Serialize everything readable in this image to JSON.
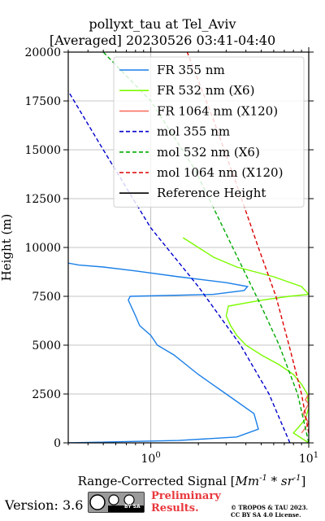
{
  "header": {
    "title_line1": "pollyxt_tau at Tel_Aviv",
    "title_line2": "[Averaged] 20230526 03:41-04:40"
  },
  "footer": {
    "version": "Version: 3.6",
    "cc_label": "BY SA",
    "preliminary_line1": "Preliminary",
    "preliminary_line2": "Results.",
    "copyright_line1": "© TROPOS & TAU 2023.",
    "copyright_line2": "CC BY SA 4.0 License."
  },
  "chart_data": {
    "type": "line",
    "title": "pollyxt_tau at Tel_Aviv [Averaged] 20230526 03:41-04:40",
    "xlabel": "Range-Corrected Signal [Mm^-1 * sr^-1]",
    "ylabel": "Height (m)",
    "xscale": "log",
    "xlim": [
      0.3,
      10
    ],
    "ylim": [
      0,
      20000
    ],
    "x_ticks": [
      {
        "value": 1,
        "label": "10^0"
      },
      {
        "value": 10,
        "label": "10^1"
      }
    ],
    "y_ticks": [
      0,
      2500,
      5000,
      7500,
      10000,
      12500,
      15000,
      17500,
      20000
    ],
    "grid": true,
    "legend_position": "top-right",
    "colors": {
      "fr355": "#1a7fe8",
      "fr532": "#7cfc00",
      "fr1064": "#f87060",
      "mol355": "#0000cc",
      "mol532": "#00aa00",
      "mol1064": "#dd0000"
    },
    "series": [
      {
        "name": "FR 355 nm",
        "key": "fr355",
        "style": "solid",
        "x": [
          0.3,
          1.5,
          3.5,
          4.8,
          4.5,
          3.0,
          2.0,
          1.4,
          1.1,
          1.0,
          0.85,
          0.8,
          0.75,
          0.72,
          0.74,
          2.5,
          3.9,
          4.1,
          3.0,
          1.5,
          0.8,
          0.5,
          0.35,
          0.3
        ],
        "y": [
          0,
          120,
          300,
          700,
          1500,
          2500,
          3500,
          4500,
          5000,
          5500,
          6000,
          6500,
          7000,
          7300,
          7500,
          7600,
          7800,
          8000,
          8200,
          8500,
          8800,
          9000,
          9100,
          9200
        ]
      },
      {
        "name": "FR 532 nm (X6)",
        "key": "fr532",
        "style": "solid",
        "x": [
          10,
          8.0,
          9.5,
          10,
          9.8,
          9.0,
          8.0,
          6.5,
          5.0,
          4.0,
          3.5,
          3.2,
          3.0,
          3.1,
          5.0,
          7.5,
          10,
          9.0,
          6.0,
          3.5,
          2.5,
          2.0,
          1.6
        ],
        "y": [
          0,
          500,
          1200,
          1800,
          2500,
          3000,
          3500,
          4000,
          4500,
          5000,
          5500,
          6000,
          6500,
          7000,
          7300,
          7500,
          7600,
          8000,
          8500,
          9000,
          9500,
          10000,
          10500
        ]
      },
      {
        "name": "FR 1064 nm (X120)",
        "key": "fr1064",
        "style": "solid",
        "x": [
          9.0,
          10,
          9.2,
          10,
          9.5,
          10
        ],
        "y": [
          500,
          1000,
          1500,
          2000,
          2200,
          2500
        ]
      },
      {
        "name": "mol 355 nm",
        "key": "mol355",
        "style": "dashed",
        "x": [
          7.6,
          5.6,
          3.7,
          2.0,
          1.0,
          0.5,
          0.3
        ],
        "y": [
          0,
          2500,
          5000,
          8000,
          11000,
          15000,
          18000
        ]
      },
      {
        "name": "mol 532 nm (X6)",
        "key": "mol532",
        "style": "dashed",
        "x": [
          10,
          8.5,
          6.5,
          5.0,
          3.3,
          1.9,
          1.0,
          0.5
        ],
        "y": [
          0,
          2500,
          5000,
          7000,
          10000,
          14000,
          17500,
          20000
        ]
      },
      {
        "name": "mol 1064 nm (X120)",
        "key": "mol1064",
        "style": "dashed",
        "x": [
          10,
          9.0,
          7.5,
          6.2,
          4.8,
          3.4,
          2.5,
          1.7
        ],
        "y": [
          500,
          2500,
          5000,
          7500,
          10000,
          13500,
          16500,
          20000
        ]
      },
      {
        "name": "Reference Height",
        "key": "refheight",
        "style": "solid",
        "x": [],
        "y": []
      }
    ]
  }
}
